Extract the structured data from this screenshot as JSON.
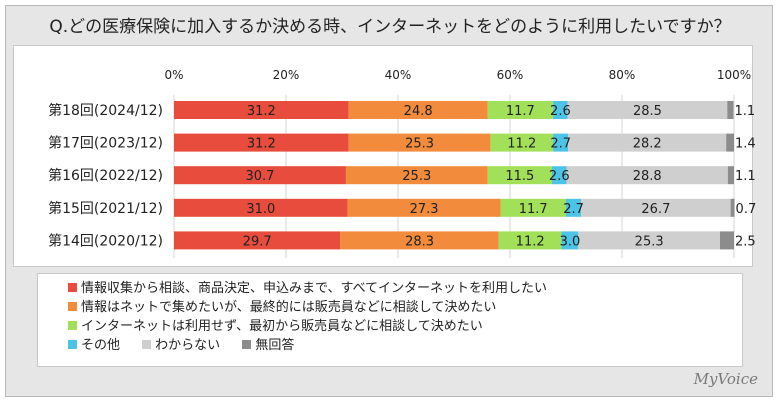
{
  "title": "Q.どの医療保険に加入するか決める時、インターネットをどのように利用したいですか？",
  "brand": "MyVoice",
  "chart_data": {
    "type": "bar",
    "orientation": "horizontal",
    "stacked": true,
    "xlim": [
      0,
      100
    ],
    "x_ticks": [
      "0%",
      "20%",
      "40%",
      "60%",
      "80%",
      "100%"
    ],
    "x_tick_values": [
      0,
      20,
      40,
      60,
      80,
      100
    ],
    "grid": true,
    "legend_position": "bottom",
    "categories": [
      "第18回(2024/12)",
      "第17回(2023/12)",
      "第16回(2022/12)",
      "第15回(2021/12)",
      "第14回(2020/12)"
    ],
    "series": [
      {
        "name": "情報収集から相談、商品決定、申込みまで、すべてインターネットを利用したい",
        "color": "#e74c3c",
        "values": [
          31.2,
          31.2,
          30.7,
          31.0,
          29.7
        ]
      },
      {
        "name": "情報はネットで集めたいが、最終的には販売員などに相談して決めたい",
        "color": "#f28b3c",
        "values": [
          24.8,
          25.3,
          25.3,
          27.3,
          28.3
        ]
      },
      {
        "name": "インターネットは利用せず、最初から販売員などに相談して決めたい",
        "color": "#a3e05a",
        "values": [
          11.7,
          11.2,
          11.5,
          11.7,
          11.2
        ]
      },
      {
        "name": "その他",
        "color": "#4dc3e6",
        "values": [
          2.6,
          2.7,
          2.6,
          2.7,
          3.0
        ]
      },
      {
        "name": "わからない",
        "color": "#cfcfcf",
        "values": [
          28.5,
          28.2,
          28.8,
          26.7,
          25.3
        ]
      },
      {
        "name": "無回答",
        "color": "#8c8c8c",
        "values": [
          1.1,
          1.4,
          1.1,
          0.7,
          2.5
        ]
      }
    ],
    "data_labels": [
      [
        "31.2",
        "24.8",
        "11.7",
        "2.6",
        "28.5",
        "1.1"
      ],
      [
        "31.2",
        "25.3",
        "11.2",
        "2.7",
        "28.2",
        "1.4"
      ],
      [
        "30.7",
        "25.3",
        "11.5",
        "2.6",
        "28.8",
        "1.1"
      ],
      [
        "31.0",
        "27.3",
        "11.7",
        "2.7",
        "26.7",
        "0.7"
      ],
      [
        "29.7",
        "28.3",
        "11.2",
        "3.0",
        "25.3",
        "2.5"
      ]
    ]
  }
}
